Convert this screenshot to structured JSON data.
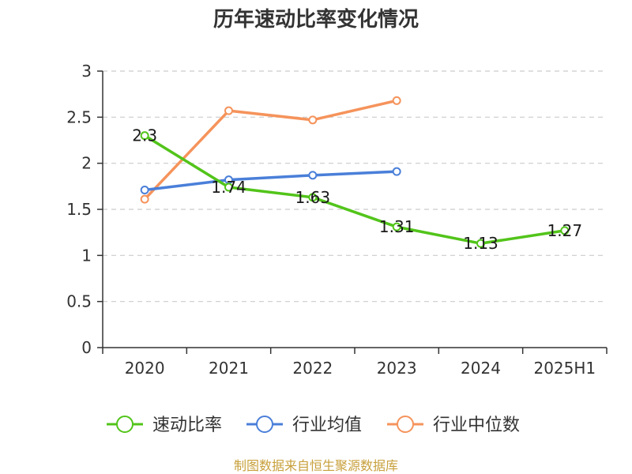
{
  "source_text": "制图数据来自恒生聚源数据库",
  "chart_data": {
    "type": "line",
    "title": "历年速动比率变化情况",
    "categories": [
      "2020",
      "2021",
      "2022",
      "2023",
      "2024",
      "2025H1"
    ],
    "ylim": [
      0,
      3
    ],
    "yticks": [
      "0",
      "0.5",
      "1",
      "1.5",
      "2",
      "2.5",
      "3"
    ],
    "grid": true,
    "legend_position": "bottom",
    "series": [
      {
        "name": "速动比率",
        "color": "#52c41a",
        "values": [
          2.3,
          1.74,
          1.63,
          1.31,
          1.13,
          1.27
        ],
        "labels": [
          "2.3",
          "1.74",
          "1.63",
          "1.31",
          "1.13",
          "1.27"
        ]
      },
      {
        "name": "行业均值",
        "color": "#4a7fd9",
        "values": [
          1.71,
          1.82,
          1.87,
          1.91,
          null,
          null
        ]
      },
      {
        "name": "行业中位数",
        "color": "#f5935b",
        "values": [
          1.61,
          2.57,
          2.47,
          2.68,
          null,
          null
        ]
      }
    ]
  }
}
